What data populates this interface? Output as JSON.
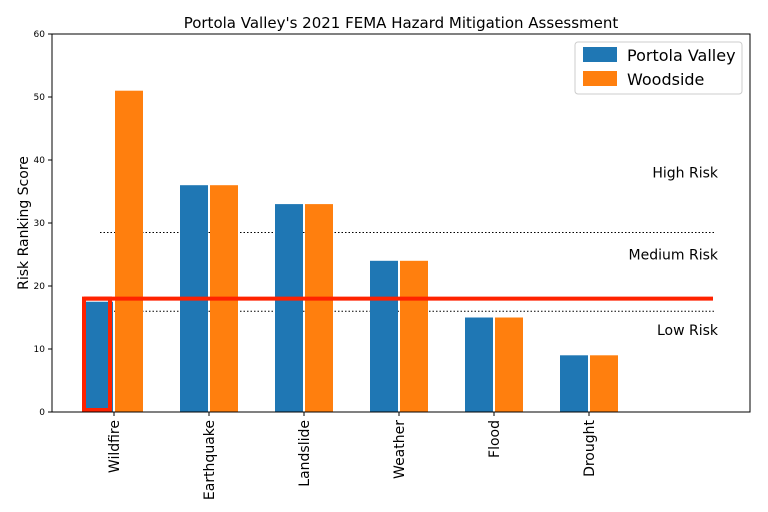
{
  "chart_data": {
    "type": "bar",
    "title": "Portola Valley's 2021 FEMA Hazard Mitigation Assessment",
    "xlabel": "",
    "ylabel": "Risk Ranking Score",
    "ylim": [
      0,
      60
    ],
    "yticks": [
      0,
      10,
      20,
      30,
      40,
      50,
      60
    ],
    "categories": [
      "Wildfire",
      "Earthquake",
      "Landslide",
      "Weather",
      "Flood",
      "Drought"
    ],
    "series": [
      {
        "name": "Portola Valley",
        "color": "#1f77b4",
        "values": [
          17.5,
          36,
          33,
          24,
          15,
          9
        ]
      },
      {
        "name": "Woodside",
        "color": "#ff7f0e",
        "values": [
          51,
          36,
          33,
          24,
          15,
          9
        ]
      }
    ],
    "legend_position": "top-right",
    "thresholds": [
      {
        "name": "high-medium",
        "value": 28.5
      },
      {
        "name": "medium-low",
        "value": 16
      }
    ],
    "zone_labels": [
      {
        "label": "High Risk",
        "value": 38
      },
      {
        "label": "Medium Risk",
        "value": 25
      },
      {
        "label": "Low Risk",
        "value": 13
      }
    ],
    "highlight": {
      "color": "#ff2200",
      "hline_value": 18,
      "bar_category": "Wildfire",
      "bar_series": "Portola Valley"
    }
  }
}
